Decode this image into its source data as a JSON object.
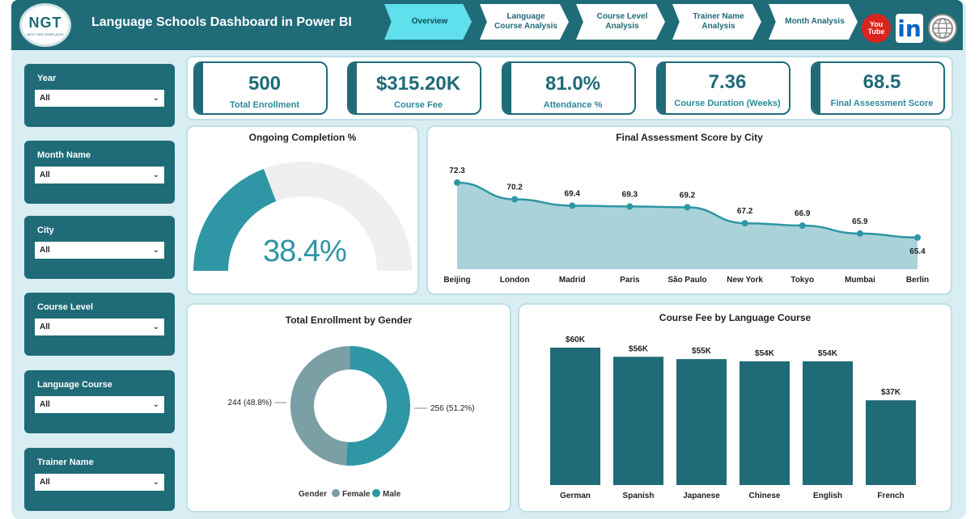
{
  "header": {
    "logo_text": "NGT",
    "logo_sub": "NEXT GEN TEMPLATES",
    "title": "Language Schools Dashboard in Power BI",
    "nav": [
      "Overview",
      "Language Course Analysis",
      "Course Level Analysis",
      "Trainer Name Analysis",
      "Month Analysis"
    ],
    "youtube_top": "You",
    "youtube_bottom": "Tube",
    "linkedin": "in"
  },
  "slicers": [
    {
      "label": "Year",
      "value": "All"
    },
    {
      "label": "Month Name",
      "value": "All"
    },
    {
      "label": "City",
      "value": "All"
    },
    {
      "label": "Course Level",
      "value": "All"
    },
    {
      "label": "Language Course",
      "value": "All"
    },
    {
      "label": "Trainer Name",
      "value": "All"
    }
  ],
  "kpis": [
    {
      "value": "500",
      "caption": "Total Enrollment"
    },
    {
      "value": "$315.20K",
      "caption": "Course Fee"
    },
    {
      "value": "81.0%",
      "caption": "Attendance %"
    },
    {
      "value": "7.36",
      "caption": "Course Duration (Weeks)"
    },
    {
      "value": "68.5",
      "caption": "Final Assessment Score"
    }
  ],
  "gauge": {
    "title": "Ongoing Completion %",
    "value_label": "38.4%",
    "value": 0.384
  },
  "chart_data": [
    {
      "type": "area",
      "title": "Final Assessment Score by City",
      "categories": [
        "Beijing",
        "London",
        "Madrid",
        "Paris",
        "São Paulo",
        "New York",
        "Tokyo",
        "Mumbai",
        "Berlin"
      ],
      "values": [
        72.3,
        70.2,
        69.4,
        69.3,
        69.2,
        67.2,
        66.9,
        65.9,
        65.4
      ],
      "labels": [
        "72.3",
        "70.2",
        "69.4",
        "69.3",
        "69.2",
        "67.2",
        "66.9",
        "65.9",
        "65.4"
      ],
      "ylim": [
        60,
        73.5
      ]
    },
    {
      "type": "pie",
      "title": "Total Enrollment by Gender",
      "legend_title": "Gender",
      "categories": [
        "Female",
        "Male"
      ],
      "values": [
        244,
        256
      ],
      "labels": [
        "244 (48.8%)",
        "256 (51.2%)"
      ],
      "colors": [
        "#7a9fa4",
        "#2e96a4"
      ]
    },
    {
      "type": "bar",
      "title": "Course Fee by Language Course",
      "categories": [
        "German",
        "Spanish",
        "Japanese",
        "Chinese",
        "English",
        "French"
      ],
      "values": [
        60,
        56,
        55,
        54,
        54,
        37
      ],
      "labels": [
        "$60K",
        "$56K",
        "$55K",
        "$54K",
        "$54K",
        "$37K"
      ],
      "ylim": [
        0,
        60
      ]
    }
  ],
  "colors": {
    "primary": "#1f6b78",
    "accent": "#2e96a4",
    "area": "#a9d3d9",
    "nav_active": "#5fe0ec"
  }
}
